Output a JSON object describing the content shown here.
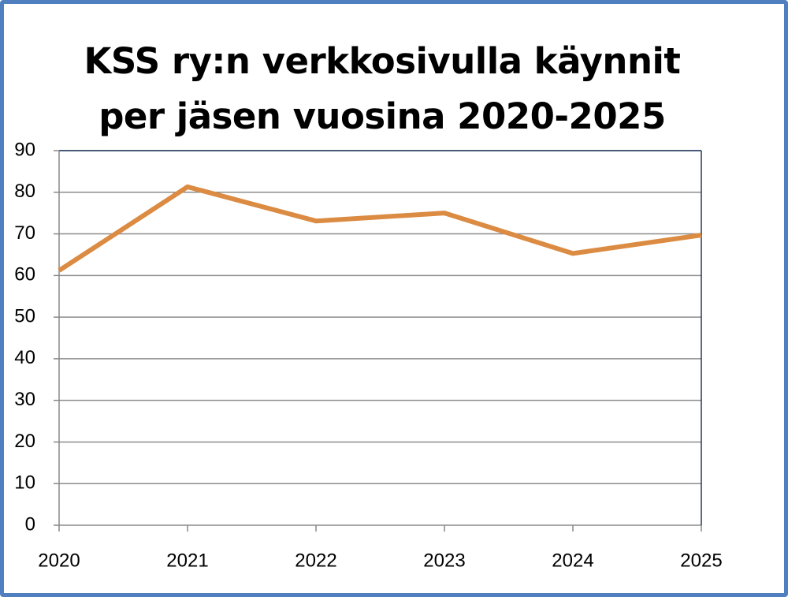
{
  "chart_data": {
    "type": "line",
    "title": "KSS ry:n verkkosivulla käynnit per jäsen vuosina 2020-2025",
    "x": [
      2020,
      2021,
      2022,
      2023,
      2024,
      2025
    ],
    "series": [
      {
        "name": "käynnit per jäsen",
        "color": "#db8b42",
        "values": [
          61.2,
          81.3,
          73.1,
          75,
          65.3,
          69.7
        ]
      }
    ],
    "xlim": [
      2020,
      2025
    ],
    "xticks": [
      2020,
      2021,
      2022,
      2023,
      2024,
      2025
    ],
    "ylim": [
      0,
      90
    ],
    "yticks": [
      0,
      10,
      20,
      30,
      40,
      50,
      60,
      70,
      80,
      90
    ],
    "grid": true
  }
}
